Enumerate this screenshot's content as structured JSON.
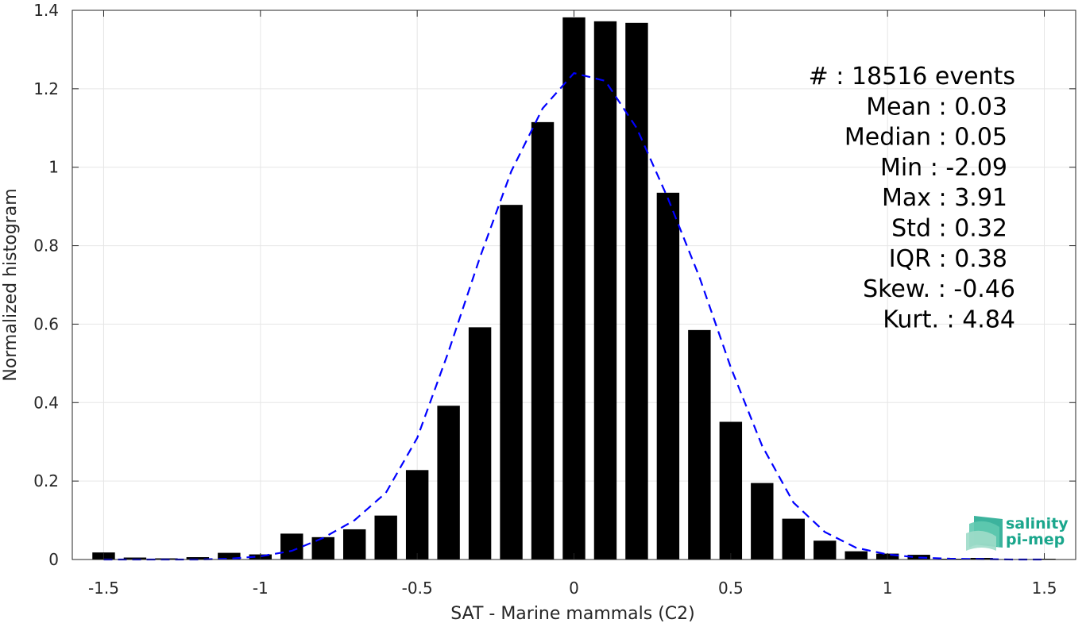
{
  "chart_data": {
    "type": "bar",
    "xlabel": "SAT - Marine mammals (C2)",
    "ylabel": "Normalized histogram",
    "xlim": [
      -1.6,
      1.6
    ],
    "ylim": [
      0,
      1.4
    ],
    "xticks": [
      -1.5,
      -1,
      -0.5,
      0,
      0.5,
      1,
      1.5
    ],
    "xtick_labels": [
      "-1.5",
      "-1",
      "-0.5",
      "0",
      "0.5",
      "1",
      "1.5"
    ],
    "yticks": [
      0,
      0.2,
      0.4,
      0.6,
      0.8,
      1,
      1.2,
      1.4
    ],
    "ytick_labels": [
      "0",
      "0.2",
      "0.4",
      "0.6",
      "0.8",
      "1",
      "1.2",
      "1.4"
    ],
    "grid": true,
    "bar_color": "#000000",
    "bins": [
      {
        "x": -1.5,
        "value": 0.018
      },
      {
        "x": -1.4,
        "value": 0.005
      },
      {
        "x": -1.3,
        "value": 0.003
      },
      {
        "x": -1.2,
        "value": 0.006
      },
      {
        "x": -1.1,
        "value": 0.017
      },
      {
        "x": -1.0,
        "value": 0.013
      },
      {
        "x": -0.9,
        "value": 0.066
      },
      {
        "x": -0.8,
        "value": 0.057
      },
      {
        "x": -0.7,
        "value": 0.077
      },
      {
        "x": -0.6,
        "value": 0.112
      },
      {
        "x": -0.5,
        "value": 0.228
      },
      {
        "x": -0.4,
        "value": 0.392
      },
      {
        "x": -0.3,
        "value": 0.592
      },
      {
        "x": -0.2,
        "value": 0.904
      },
      {
        "x": -0.1,
        "value": 1.115
      },
      {
        "x": 0.0,
        "value": 1.382
      },
      {
        "x": 0.1,
        "value": 1.372
      },
      {
        "x": 0.2,
        "value": 1.368
      },
      {
        "x": 0.3,
        "value": 0.935
      },
      {
        "x": 0.4,
        "value": 0.585
      },
      {
        "x": 0.5,
        "value": 0.351
      },
      {
        "x": 0.6,
        "value": 0.195
      },
      {
        "x": 0.7,
        "value": 0.104
      },
      {
        "x": 0.8,
        "value": 0.048
      },
      {
        "x": 0.9,
        "value": 0.021
      },
      {
        "x": 1.0,
        "value": 0.015
      },
      {
        "x": 1.1,
        "value": 0.012
      },
      {
        "x": 1.2,
        "value": 0.002
      },
      {
        "x": 1.3,
        "value": 0.004
      },
      {
        "x": 1.4,
        "value": 0.0
      },
      {
        "x": 1.5,
        "value": 0.002
      }
    ],
    "series": [
      {
        "type": "line",
        "style": "dashed",
        "color": "#0000ff",
        "x": [
          -1.5,
          -1.4,
          -1.3,
          -1.2,
          -1.1,
          -1.0,
          -0.9,
          -0.8,
          -0.7,
          -0.6,
          -0.5,
          -0.4,
          -0.3,
          -0.2,
          -0.1,
          0.0,
          0.1,
          0.2,
          0.3,
          0.4,
          0.5,
          0.6,
          0.7,
          0.8,
          0.9,
          1.0,
          1.1,
          1.2,
          1.3,
          1.4,
          1.5
        ],
        "y": [
          0.0,
          0.0,
          0.0,
          0.0,
          0.002,
          0.008,
          0.022,
          0.055,
          0.1,
          0.17,
          0.31,
          0.53,
          0.77,
          0.99,
          1.15,
          1.24,
          1.22,
          1.1,
          0.92,
          0.72,
          0.49,
          0.29,
          0.145,
          0.07,
          0.03,
          0.013,
          0.005,
          0.002,
          0.001,
          0.0,
          0.0
        ]
      }
    ],
    "annotations": [
      {
        "key": "#",
        "value": "18516 events"
      },
      {
        "key": "Mean",
        "value": "0.03"
      },
      {
        "key": "Median",
        "value": "0.05"
      },
      {
        "key": "Min",
        "value": "-2.09"
      },
      {
        "key": "Max",
        "value": "3.91"
      },
      {
        "key": "Std",
        "value": "0.32"
      },
      {
        "key": "IQR",
        "value": "0.38"
      },
      {
        "key": "Skew.",
        "value": "-0.46"
      },
      {
        "key": "Kurt.",
        "value": "4.84"
      }
    ]
  },
  "logo": {
    "line1": "salinity",
    "line2": "pi-mep",
    "color": "#1aa68c"
  }
}
